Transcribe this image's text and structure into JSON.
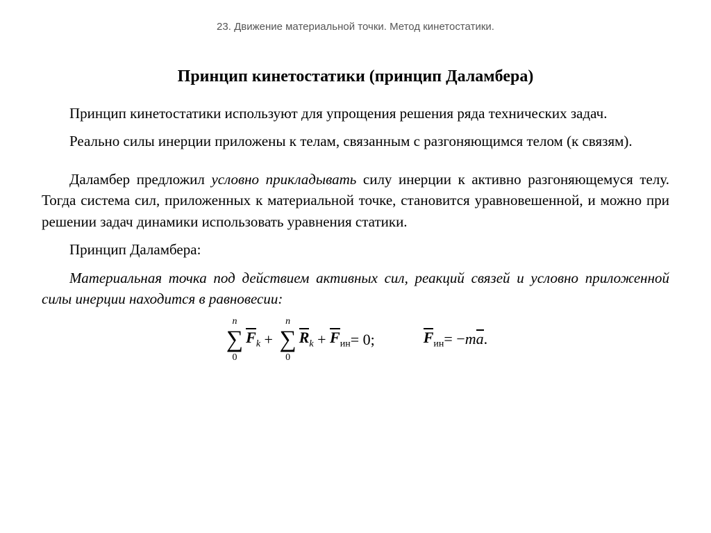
{
  "chapter": "23. Движение материальной точки. Метод кинетостатики.",
  "title": "Принцип кинетостатики (принцип Даламбера)",
  "p1": "Принцип кинетостатики используют для упрощения решения ряда технических задач.",
  "p2": "Реально силы инерции приложены к телам, связанным с разго­няющимся телом (к связям).",
  "p3a": "Даламбер предложил ",
  "p3b": "условно прикладывать",
  "p3c": " силу инерции к ак­тивно разгоняющемуся телу. Тогда система сил, приложенных к ма­териальной точке, становится уравновешенной, и можно при реше­нии задач динамики использовать уравнения статики.",
  "p4": "Принцип Даламбера:",
  "p5": "Материальная точка под действием активных сил, реакций связей и условно приложенной силы инерции находится в равнове­сии:",
  "formula": {
    "sum_upper": "n",
    "sum_lower": "0",
    "F": "F",
    "k": "k",
    "R": "R",
    "Fin_sub": "ин",
    "eq_zero": " = 0;",
    "minus": " = −",
    "m": "m",
    "a": "a",
    "dot": "."
  }
}
